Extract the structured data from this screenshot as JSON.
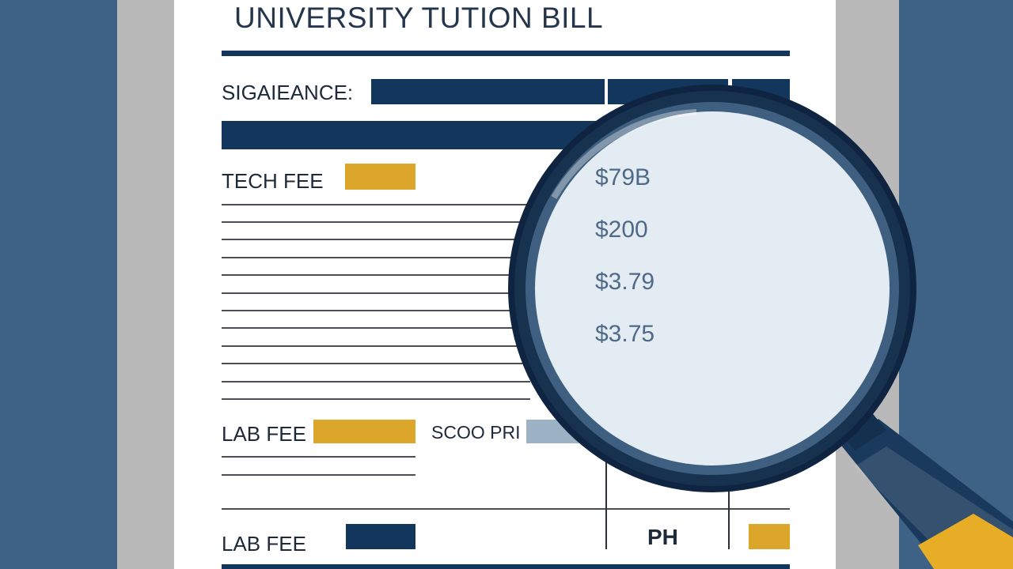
{
  "document": {
    "title": "UNIVERSITY TUTION BILL",
    "balance_label": "SIGAIEANCE:",
    "rows": [
      {
        "label": "TECH FEE"
      },
      {
        "label": "LAB FEE",
        "mid_label": "SCOO PRI"
      },
      {
        "label": "LAB FEE",
        "mid_label": "PH"
      }
    ]
  },
  "lens": {
    "amounts": [
      "$79B",
      "$200",
      "$3.79",
      "$3.75"
    ]
  },
  "colors": {
    "background": "#3d6285",
    "navy": "#13365c",
    "gold": "#dca62b",
    "lens_glass": "#e3ebf3"
  }
}
